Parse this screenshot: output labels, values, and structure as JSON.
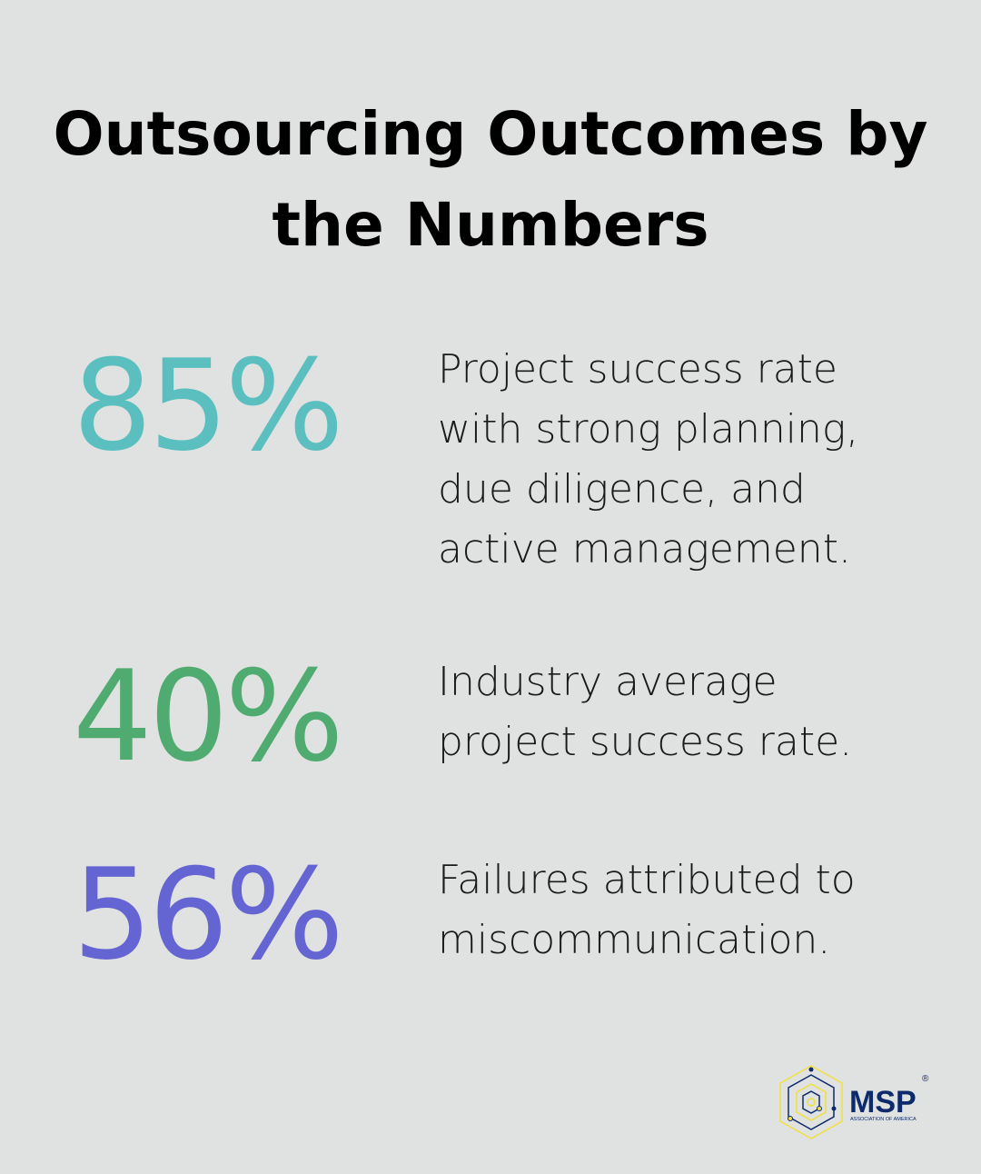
{
  "title": "Outsourcing Outcomes by the Numbers",
  "stats": [
    {
      "value": "85%",
      "color": "#5bbfbf",
      "description": "Project success rate with strong planning, due diligence, and active management."
    },
    {
      "value": "40%",
      "color": "#4fab6f",
      "description": "Industry average project success rate."
    },
    {
      "value": "56%",
      "color": "#6464d2",
      "description": "Failures attributed to miscommunication."
    }
  ],
  "logo": {
    "name": "MSP",
    "tagline": "ASSOCIATION OF AMERICA",
    "mark": "®",
    "colors": {
      "primary": "#0d2a6b",
      "accent": "#f0e040"
    }
  }
}
